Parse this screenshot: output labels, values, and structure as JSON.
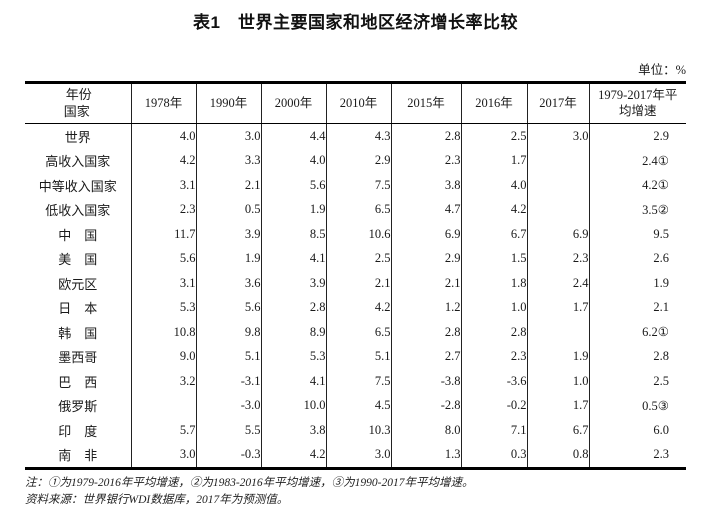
{
  "title": "表1　世界主要国家和地区经济增长率比较",
  "unit_label": "单位：%",
  "table": {
    "corner_top": "年份",
    "corner_bottom": "国家",
    "columns": [
      "1978年",
      "1990年",
      "2000年",
      "2010年",
      "2015年",
      "2016年",
      "2017年",
      "1979-2017年平均增速"
    ],
    "rows": [
      {
        "label": "世界",
        "values": [
          "4.0",
          "3.0",
          "4.4",
          "4.3",
          "2.8",
          "2.5",
          "3.0",
          "2.9"
        ]
      },
      {
        "label": "高收入国家",
        "values": [
          "4.2",
          "3.3",
          "4.0",
          "2.9",
          "2.3",
          "1.7",
          "",
          "2.4①"
        ]
      },
      {
        "label": "中等收入国家",
        "values": [
          "3.1",
          "2.1",
          "5.6",
          "7.5",
          "3.8",
          "4.0",
          "",
          "4.2①"
        ]
      },
      {
        "label": "低收入国家",
        "values": [
          "2.3",
          "0.5",
          "1.9",
          "6.5",
          "4.7",
          "4.2",
          "",
          "3.5②"
        ]
      },
      {
        "label": "中　国",
        "values": [
          "11.7",
          "3.9",
          "8.5",
          "10.6",
          "6.9",
          "6.7",
          "6.9",
          "9.5"
        ]
      },
      {
        "label": "美　国",
        "values": [
          "5.6",
          "1.9",
          "4.1",
          "2.5",
          "2.9",
          "1.5",
          "2.3",
          "2.6"
        ]
      },
      {
        "label": "欧元区",
        "values": [
          "3.1",
          "3.6",
          "3.9",
          "2.1",
          "2.1",
          "1.8",
          "2.4",
          "1.9"
        ]
      },
      {
        "label": "日　本",
        "values": [
          "5.3",
          "5.6",
          "2.8",
          "4.2",
          "1.2",
          "1.0",
          "1.7",
          "2.1"
        ]
      },
      {
        "label": "韩　国",
        "values": [
          "10.8",
          "9.8",
          "8.9",
          "6.5",
          "2.8",
          "2.8",
          "",
          "6.2①"
        ]
      },
      {
        "label": "墨西哥",
        "values": [
          "9.0",
          "5.1",
          "5.3",
          "5.1",
          "2.7",
          "2.3",
          "1.9",
          "2.8"
        ]
      },
      {
        "label": "巴　西",
        "values": [
          "3.2",
          "-3.1",
          "4.1",
          "7.5",
          "-3.8",
          "-3.6",
          "1.0",
          "2.5"
        ]
      },
      {
        "label": "俄罗斯",
        "values": [
          "",
          "-3.0",
          "10.0",
          "4.5",
          "-2.8",
          "-0.2",
          "1.7",
          "0.5③"
        ]
      },
      {
        "label": "印　度",
        "values": [
          "5.7",
          "5.5",
          "3.8",
          "10.3",
          "8.0",
          "7.1",
          "6.7",
          "6.0"
        ]
      },
      {
        "label": "南　非",
        "values": [
          "3.0",
          "-0.3",
          "4.2",
          "3.0",
          "1.3",
          "0.3",
          "0.8",
          "2.3"
        ]
      }
    ]
  },
  "notes": [
    "注：①为1979-2016年平均增速，②为1983-2016年平均增速，③为1990-2017年平均增速。",
    "资料来源：世界银行WDI数据库，2017年为预测值。"
  ]
}
